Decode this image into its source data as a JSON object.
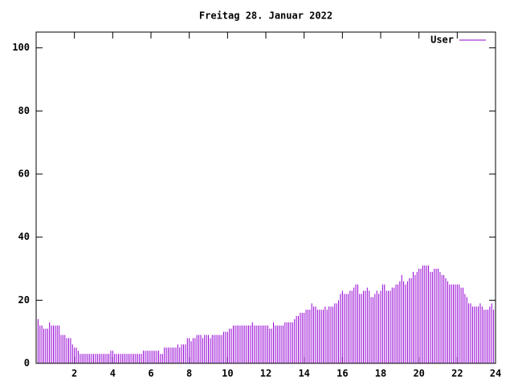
{
  "chart_data": {
    "type": "impulses",
    "title": "Freitag 28. Januar 2022",
    "x": [
      0,
      0.1,
      0.2,
      0.3,
      0.4,
      0.5,
      0.6,
      0.7,
      0.8,
      0.9,
      1,
      1.1,
      1.2,
      1.3,
      1.4,
      1.5,
      1.6,
      1.7,
      1.8,
      1.9,
      2,
      2.1,
      2.2,
      2.3,
      2.4,
      2.5,
      2.6,
      2.7,
      2.8,
      2.9,
      3,
      3.1,
      3.2,
      3.3,
      3.4,
      3.5,
      3.6,
      3.7,
      3.8,
      3.9,
      4,
      4.1,
      4.2,
      4.3,
      4.4,
      4.5,
      4.6,
      4.7,
      4.8,
      4.9,
      5,
      5.1,
      5.2,
      5.3,
      5.4,
      5.5,
      5.6,
      5.7,
      5.8,
      5.9,
      6,
      6.1,
      6.2,
      6.3,
      6.4,
      6.5,
      6.6,
      6.7,
      6.8,
      6.9,
      7,
      7.1,
      7.2,
      7.3,
      7.4,
      7.5,
      7.6,
      7.7,
      7.8,
      7.9,
      8,
      8.1,
      8.2,
      8.3,
      8.4,
      8.5,
      8.6,
      8.7,
      8.8,
      8.9,
      9,
      9.1,
      9.2,
      9.3,
      9.4,
      9.5,
      9.6,
      9.7,
      9.8,
      9.9,
      10,
      10.1,
      10.2,
      10.3,
      10.4,
      10.5,
      10.6,
      10.7,
      10.8,
      10.9,
      11,
      11.1,
      11.2,
      11.3,
      11.4,
      11.5,
      11.6,
      11.7,
      11.8,
      11.9,
      12,
      12.1,
      12.2,
      12.3,
      12.4,
      12.5,
      12.6,
      12.7,
      12.8,
      12.9,
      13,
      13.1,
      13.2,
      13.3,
      13.4,
      13.5,
      13.6,
      13.7,
      13.8,
      13.9,
      14,
      14.1,
      14.2,
      14.3,
      14.4,
      14.5,
      14.6,
      14.7,
      14.8,
      14.9,
      15,
      15.1,
      15.2,
      15.3,
      15.4,
      15.5,
      15.6,
      15.7,
      15.8,
      15.9,
      16,
      16.1,
      16.2,
      16.3,
      16.4,
      16.5,
      16.6,
      16.7,
      16.8,
      16.9,
      17,
      17.1,
      17.2,
      17.3,
      17.4,
      17.5,
      17.6,
      17.7,
      17.8,
      17.9,
      18,
      18.1,
      18.2,
      18.3,
      18.4,
      18.5,
      18.6,
      18.7,
      18.8,
      18.9,
      19,
      19.1,
      19.2,
      19.3,
      19.4,
      19.5,
      19.6,
      19.7,
      19.8,
      19.9,
      20,
      20.1,
      20.2,
      20.3,
      20.4,
      20.5,
      20.6,
      20.7,
      20.8,
      20.9,
      21,
      21.1,
      21.2,
      21.3,
      21.4,
      21.5,
      21.6,
      21.7,
      21.8,
      21.9,
      22,
      22.1,
      22.2,
      22.3,
      22.4,
      22.5,
      22.6,
      22.7,
      22.8,
      22.9,
      23,
      23.1,
      23.2,
      23.3,
      23.4,
      23.5,
      23.6,
      23.7,
      23.8,
      23.9
    ],
    "series": [
      {
        "name": "User",
        "color": "#9400d3",
        "values": [
          15,
          14,
          12,
          12,
          11,
          11,
          11,
          13,
          12,
          12,
          12,
          12,
          12,
          9,
          9,
          9,
          8,
          8,
          8,
          6,
          5,
          5,
          4,
          3,
          3,
          3,
          3,
          3,
          3,
          3,
          3,
          3,
          3,
          3,
          3,
          3,
          3,
          3,
          3,
          4,
          4,
          3,
          3,
          3,
          3,
          3,
          3,
          3,
          3,
          3,
          3,
          3,
          3,
          3,
          3,
          3,
          4,
          4,
          4,
          4,
          4,
          4,
          4,
          4,
          4,
          3,
          3,
          5,
          5,
          5,
          5,
          5,
          5,
          5,
          6,
          5,
          6,
          6,
          6,
          8,
          8,
          7,
          8,
          8,
          9,
          9,
          9,
          8,
          9,
          9,
          9,
          8,
          9,
          9,
          9,
          9,
          9,
          9,
          10,
          10,
          10,
          11,
          11,
          12,
          12,
          12,
          12,
          12,
          12,
          12,
          12,
          12,
          12,
          13,
          12,
          12,
          12,
          12,
          12,
          12,
          12,
          12,
          11,
          11,
          13,
          12,
          12,
          12,
          12,
          12,
          13,
          13,
          13,
          13,
          13,
          14,
          15,
          15,
          16,
          16,
          16,
          17,
          17,
          17,
          19,
          18,
          18,
          17,
          17,
          17,
          17,
          18,
          17,
          18,
          18,
          18,
          19,
          19,
          20,
          22,
          23,
          22,
          22,
          22,
          23,
          23,
          24,
          25,
          25,
          22,
          22,
          23,
          23,
          24,
          23,
          21,
          21,
          22,
          23,
          22,
          23,
          25,
          25,
          23,
          23,
          23,
          24,
          24,
          25,
          25,
          26,
          28,
          26,
          25,
          26,
          27,
          27,
          29,
          28,
          29,
          30,
          30,
          31,
          31,
          31,
          31,
          29,
          29,
          30,
          30,
          30,
          29,
          28,
          28,
          27,
          26,
          25,
          25,
          25,
          25,
          25,
          25,
          24,
          24,
          22,
          21,
          19,
          19,
          18,
          18,
          18,
          18,
          19,
          18,
          17,
          17,
          17,
          18,
          19,
          17
        ]
      }
    ],
    "xlim": [
      0,
      24
    ],
    "xticks": [
      2,
      4,
      6,
      8,
      10,
      12,
      14,
      16,
      18,
      20,
      22,
      24
    ],
    "ylim": [
      0,
      105
    ],
    "yticks": [
      0,
      20,
      40,
      60,
      80,
      100
    ],
    "legend": "top-right"
  }
}
